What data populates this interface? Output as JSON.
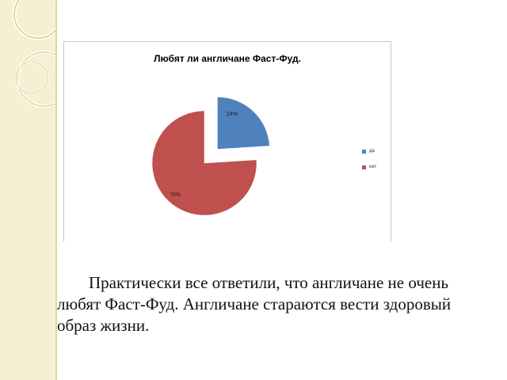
{
  "chart_data": {
    "type": "pie",
    "title": "Любят ли англичане Фаст-Фуд.",
    "categories": [
      "да",
      "нет"
    ],
    "values": [
      24,
      76
    ],
    "data_labels": [
      "24%",
      "76%"
    ],
    "colors": [
      "#4f81bd",
      "#c0504d"
    ],
    "legend_position": "right",
    "exploded_slice": "да"
  },
  "caption": {
    "text": "Практически все ответили, что англичане не очень любят Фаст-Фуд.     Англичане стараются вести здоровый образ жизни."
  }
}
